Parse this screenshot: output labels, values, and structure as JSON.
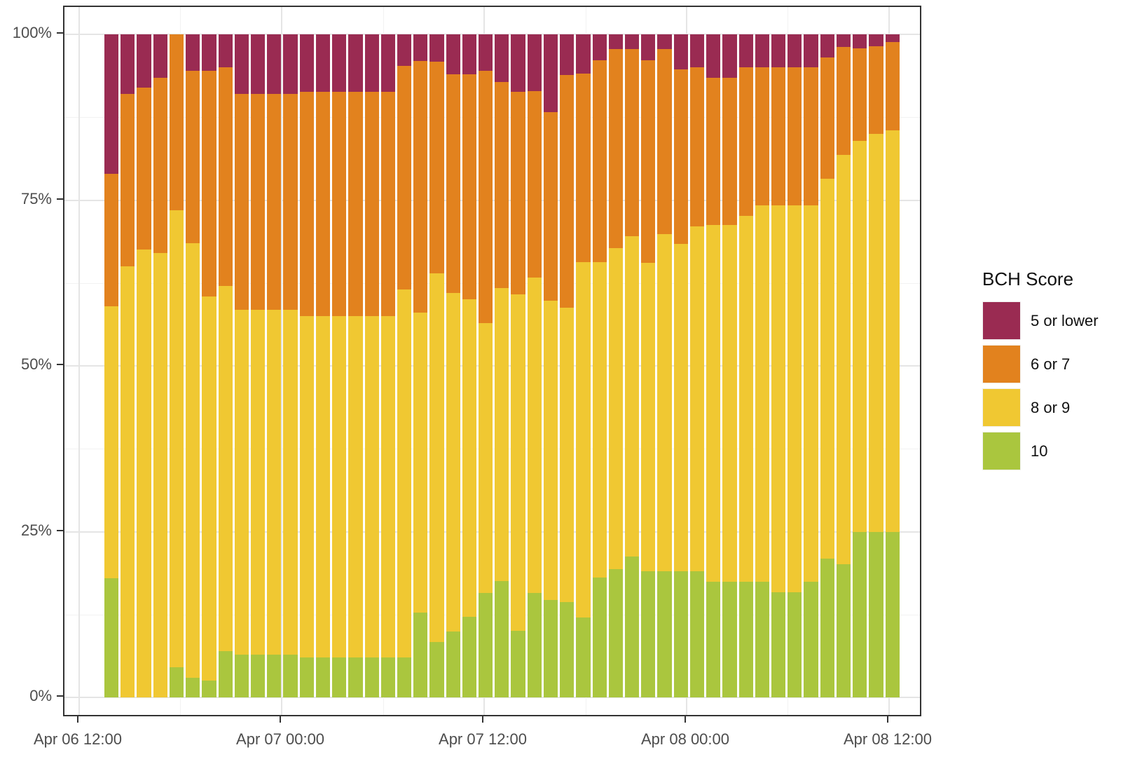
{
  "chart_data": {
    "type": "bar",
    "stacking": "percent_100",
    "orientation": "vertical",
    "title": "",
    "x_axis": {
      "label": "",
      "ticks": [
        "Apr 06 12:00",
        "Apr 07 00:00",
        "Apr 07 12:00",
        "Apr 08 00:00",
        "Apr 08 12:00"
      ]
    },
    "y_axis": {
      "label": "",
      "ticks": [
        "0%",
        "25%",
        "50%",
        "75%",
        "100%"
      ],
      "tick_values": [
        0,
        25,
        50,
        75,
        100
      ],
      "range": [
        0,
        100
      ]
    },
    "grid": {
      "major": true,
      "minor": true
    },
    "legend": {
      "title": "BCH Score",
      "position": "right",
      "entries": [
        {
          "label": "5 or lower",
          "color": "#9A2B52"
        },
        {
          "label": "6 or 7",
          "color": "#E2821E"
        },
        {
          "label": "8 or 9",
          "color": "#F0C832"
        },
        {
          "label": "10",
          "color": "#AAC63E"
        }
      ]
    },
    "series_order_bottom_to_top": [
      "10",
      "8 or 9",
      "6 or 7",
      "5 or lower"
    ],
    "bars": [
      {
        "time": "Apr 06 13:00",
        "10": 18.0,
        "8 or 9": 41.0,
        "6 or 7": 20.0,
        "5 or lower": 21.0
      },
      {
        "time": "Apr 06 14:00",
        "10": 0.0,
        "8 or 9": 65.0,
        "6 or 7": 26.0,
        "5 or lower": 9.0
      },
      {
        "time": "Apr 06 15:00",
        "10": 0.0,
        "8 or 9": 67.5,
        "6 or 7": 24.5,
        "5 or lower": 8.0
      },
      {
        "time": "Apr 06 16:00",
        "10": 0.0,
        "8 or 9": 67.0,
        "6 or 7": 26.5,
        "5 or lower": 6.5
      },
      {
        "time": "Apr 06 17:00",
        "10": 4.5,
        "8 or 9": 69.0,
        "6 or 7": 26.5,
        "5 or lower": 0.0
      },
      {
        "time": "Apr 06 18:00",
        "10": 3.0,
        "8 or 9": 65.5,
        "6 or 7": 26.0,
        "5 or lower": 5.5
      },
      {
        "time": "Apr 06 19:00",
        "10": 2.5,
        "8 or 9": 58.0,
        "6 or 7": 34.0,
        "5 or lower": 5.5
      },
      {
        "time": "Apr 06 20:00",
        "10": 7.0,
        "8 or 9": 55.0,
        "6 or 7": 33.0,
        "5 or lower": 5.0
      },
      {
        "time": "Apr 06 21:00",
        "10": 6.5,
        "8 or 9": 52.0,
        "6 or 7": 32.5,
        "5 or lower": 9.0
      },
      {
        "time": "Apr 06 22:00",
        "10": 6.5,
        "8 or 9": 52.0,
        "6 or 7": 32.5,
        "5 or lower": 9.0
      },
      {
        "time": "Apr 06 23:00",
        "10": 6.5,
        "8 or 9": 52.0,
        "6 or 7": 32.5,
        "5 or lower": 9.0
      },
      {
        "time": "Apr 07 00:00",
        "10": 6.5,
        "8 or 9": 52.0,
        "6 or 7": 32.5,
        "5 or lower": 9.0
      },
      {
        "time": "Apr 07 01:00",
        "10": 6.0,
        "8 or 9": 51.5,
        "6 or 7": 33.8,
        "5 or lower": 8.7
      },
      {
        "time": "Apr 07 02:00",
        "10": 6.0,
        "8 or 9": 51.5,
        "6 or 7": 33.8,
        "5 or lower": 8.7
      },
      {
        "time": "Apr 07 03:00",
        "10": 6.0,
        "8 or 9": 51.5,
        "6 or 7": 33.8,
        "5 or lower": 8.7
      },
      {
        "time": "Apr 07 04:00",
        "10": 6.0,
        "8 or 9": 51.5,
        "6 or 7": 33.8,
        "5 or lower": 8.7
      },
      {
        "time": "Apr 07 05:00",
        "10": 6.0,
        "8 or 9": 51.5,
        "6 or 7": 33.8,
        "5 or lower": 8.7
      },
      {
        "time": "Apr 07 06:00",
        "10": 6.0,
        "8 or 9": 51.5,
        "6 or 7": 33.8,
        "5 or lower": 8.7
      },
      {
        "time": "Apr 07 07:00",
        "10": 6.0,
        "8 or 9": 55.5,
        "6 or 7": 33.8,
        "5 or lower": 4.7
      },
      {
        "time": "Apr 07 08:00",
        "10": 12.8,
        "8 or 9": 45.2,
        "6 or 7": 38.0,
        "5 or lower": 4.0
      },
      {
        "time": "Apr 07 09:00",
        "10": 8.4,
        "8 or 9": 55.6,
        "6 or 7": 31.9,
        "5 or lower": 4.1
      },
      {
        "time": "Apr 07 10:00",
        "10": 9.9,
        "8 or 9": 51.1,
        "6 or 7": 33.0,
        "5 or lower": 6.0
      },
      {
        "time": "Apr 07 11:00",
        "10": 12.2,
        "8 or 9": 47.8,
        "6 or 7": 34.0,
        "5 or lower": 6.0
      },
      {
        "time": "Apr 07 12:00",
        "10": 15.7,
        "8 or 9": 40.8,
        "6 or 7": 38.0,
        "5 or lower": 5.5
      },
      {
        "time": "Apr 07 13:00",
        "10": 17.5,
        "8 or 9": 44.2,
        "6 or 7": 31.1,
        "5 or lower": 7.2
      },
      {
        "time": "Apr 07 14:00",
        "10": 10.0,
        "8 or 9": 50.8,
        "6 or 7": 30.5,
        "5 or lower": 8.7
      },
      {
        "time": "Apr 07 15:00",
        "10": 15.7,
        "8 or 9": 47.6,
        "6 or 7": 28.1,
        "5 or lower": 8.6
      },
      {
        "time": "Apr 07 16:00",
        "10": 14.7,
        "8 or 9": 45.1,
        "6 or 7": 28.5,
        "5 or lower": 11.7
      },
      {
        "time": "Apr 07 17:00",
        "10": 14.4,
        "8 or 9": 44.4,
        "6 or 7": 35.1,
        "5 or lower": 6.1
      },
      {
        "time": "Apr 07 18:00",
        "10": 12.1,
        "8 or 9": 53.5,
        "6 or 7": 28.5,
        "5 or lower": 5.9
      },
      {
        "time": "Apr 07 19:00",
        "10": 18.1,
        "8 or 9": 47.6,
        "6 or 7": 30.4,
        "5 or lower": 3.9
      },
      {
        "time": "Apr 07 20:00",
        "10": 19.3,
        "8 or 9": 48.5,
        "6 or 7": 30.0,
        "5 or lower": 2.2
      },
      {
        "time": "Apr 07 21:00",
        "10": 21.2,
        "8 or 9": 48.4,
        "6 or 7": 28.2,
        "5 or lower": 2.2
      },
      {
        "time": "Apr 07 22:00",
        "10": 19.0,
        "8 or 9": 46.5,
        "6 or 7": 30.6,
        "5 or lower": 3.9
      },
      {
        "time": "Apr 07 23:00",
        "10": 19.0,
        "8 or 9": 50.9,
        "6 or 7": 27.9,
        "5 or lower": 2.2
      },
      {
        "time": "Apr 08 00:00",
        "10": 19.0,
        "8 or 9": 49.4,
        "6 or 7": 26.3,
        "5 or lower": 5.3
      },
      {
        "time": "Apr 08 01:00",
        "10": 19.0,
        "8 or 9": 52.0,
        "6 or 7": 24.0,
        "5 or lower": 5.0
      },
      {
        "time": "Apr 08 02:00",
        "10": 17.4,
        "8 or 9": 53.8,
        "6 or 7": 22.3,
        "5 or lower": 6.5
      },
      {
        "time": "Apr 08 03:00",
        "10": 17.4,
        "8 or 9": 53.8,
        "6 or 7": 22.3,
        "5 or lower": 6.5
      },
      {
        "time": "Apr 08 04:00",
        "10": 17.4,
        "8 or 9": 55.2,
        "6 or 7": 22.4,
        "5 or lower": 5.0
      },
      {
        "time": "Apr 08 05:00",
        "10": 17.4,
        "8 or 9": 56.8,
        "6 or 7": 20.8,
        "5 or lower": 5.0
      },
      {
        "time": "Apr 08 06:00",
        "10": 15.9,
        "8 or 9": 58.3,
        "6 or 7": 20.8,
        "5 or lower": 5.0
      },
      {
        "time": "Apr 08 07:00",
        "10": 15.9,
        "8 or 9": 58.3,
        "6 or 7": 20.8,
        "5 or lower": 5.0
      },
      {
        "time": "Apr 08 08:00",
        "10": 17.4,
        "8 or 9": 56.8,
        "6 or 7": 20.8,
        "5 or lower": 5.0
      },
      {
        "time": "Apr 08 09:00",
        "10": 20.9,
        "8 or 9": 57.3,
        "6 or 7": 18.3,
        "5 or lower": 3.5
      },
      {
        "time": "Apr 08 10:00",
        "10": 20.1,
        "8 or 9": 61.7,
        "6 or 7": 16.3,
        "5 or lower": 1.9
      },
      {
        "time": "Apr 08 11:00",
        "10": 25.0,
        "8 or 9": 58.9,
        "6 or 7": 14.0,
        "5 or lower": 2.1
      },
      {
        "time": "Apr 08 12:00",
        "10": 25.0,
        "8 or 9": 60.0,
        "6 or 7": 13.2,
        "5 or lower": 1.8
      },
      {
        "time": "Apr 08 13:00",
        "10": 25.0,
        "8 or 9": 60.5,
        "6 or 7": 13.3,
        "5 or lower": 1.2
      }
    ]
  }
}
